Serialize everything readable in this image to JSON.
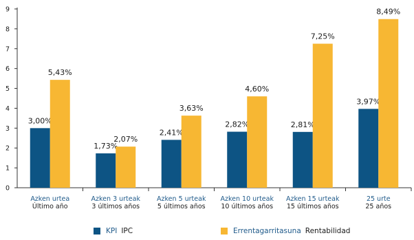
{
  "chart_data": {
    "type": "bar",
    "categories": [
      {
        "eu": "Azken urtea",
        "es": "Último año"
      },
      {
        "eu": "Azken 3 urteak",
        "es": "3 últimos años"
      },
      {
        "eu": "Azken 5 urteak",
        "es": "5 últimos años"
      },
      {
        "eu": "Azken 10 urteak",
        "es": "10 últimos años"
      },
      {
        "eu": "Azken 15 urteak",
        "es": "15 últimos años"
      },
      {
        "eu": "25 urte",
        "es": "25 años"
      }
    ],
    "series": [
      {
        "name_eu": "KPI",
        "name_es": "IPC",
        "color": "#0d5484",
        "values": [
          3.0,
          1.73,
          2.41,
          2.82,
          2.81,
          3.97
        ],
        "labels": [
          "3,00%",
          "1,73%",
          "2,41%",
          "2,82%",
          "2,81%",
          "3,97%"
        ]
      },
      {
        "name_eu": "Errentagarritasuna",
        "name_es": "Rentabilidad",
        "color": "#f7b733",
        "values": [
          5.43,
          2.07,
          3.63,
          4.6,
          7.25,
          8.49
        ],
        "labels": [
          "5,43%",
          "2,07%",
          "3,63%",
          "4,60%",
          "7,25%",
          "8,49%"
        ]
      }
    ],
    "yticks": [
      "0",
      "1",
      "2",
      "3",
      "4",
      "5",
      "6",
      "7",
      "8",
      "9"
    ],
    "ylim": [
      0,
      9
    ],
    "grid": false,
    "legend": "bottom"
  }
}
